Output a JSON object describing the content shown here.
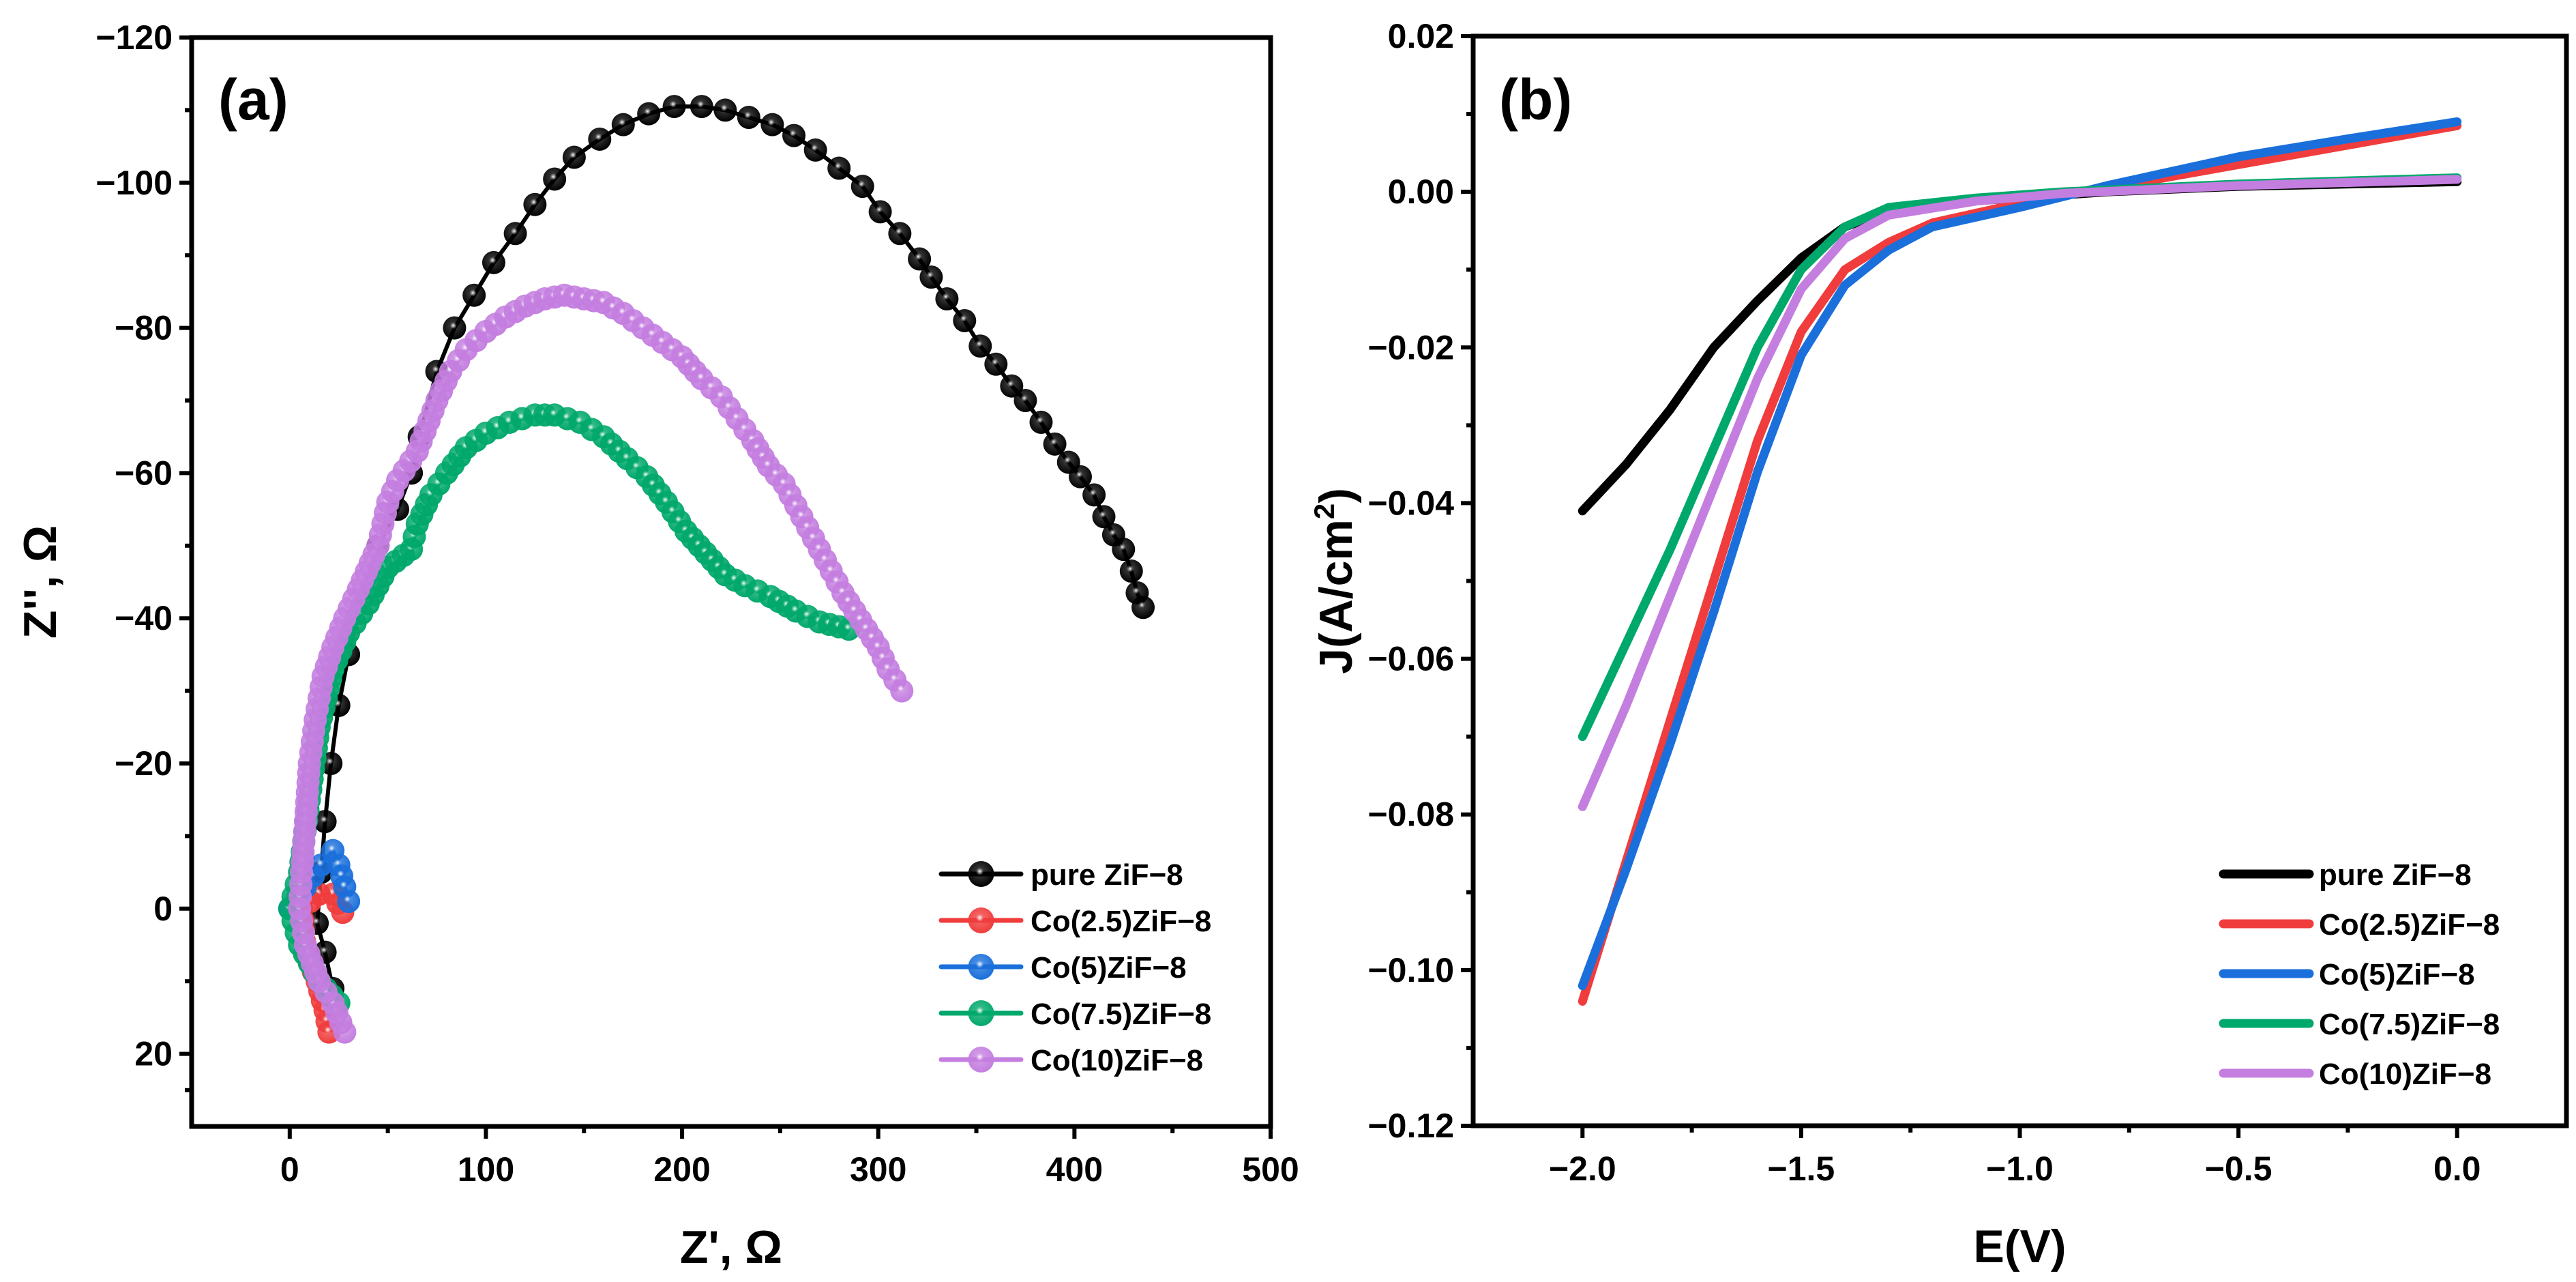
{
  "chart_data": [
    {
      "panel_label": "(a)",
      "type": "scatter",
      "xlabel": "Z', Ω",
      "ylabel": "Z'', Ω",
      "xlim": [
        -50,
        500
      ],
      "ylim": [
        30,
        -120
      ],
      "xticks": [
        0,
        100,
        200,
        300,
        400,
        500
      ],
      "xtick_labels": [
        "0",
        "100",
        "200",
        "300",
        "400",
        "500"
      ],
      "yticks": [
        -120,
        -100,
        -80,
        -60,
        -40,
        -20,
        0,
        20
      ],
      "ytick_labels": [
        "−120",
        "−100",
        "−80",
        "−60",
        "−40",
        "−20",
        "0",
        "20"
      ],
      "legend_position": "bottom-right",
      "series": [
        {
          "name": "pure ZiF−8",
          "color": "#000000",
          "points": [
            [
              22,
              11
            ],
            [
              18,
              6
            ],
            [
              14,
              2
            ],
            [
              16,
              -5
            ],
            [
              18,
              -12
            ],
            [
              21,
              -20
            ],
            [
              25,
              -28
            ],
            [
              30,
              -35
            ],
            [
              37,
              -43
            ],
            [
              45,
              -50
            ],
            [
              55,
              -55
            ],
            [
              62,
              -60
            ],
            [
              66,
              -65
            ],
            [
              75,
              -74
            ],
            [
              84,
              -80
            ],
            [
              94,
              -84.5
            ],
            [
              104,
              -89
            ],
            [
              115,
              -93
            ],
            [
              125,
              -97
            ],
            [
              135,
              -100.5
            ],
            [
              145,
              -103.5
            ],
            [
              158,
              -106
            ],
            [
              170,
              -108
            ],
            [
              183,
              -109.5
            ],
            [
              196,
              -110.5
            ],
            [
              210,
              -110.5
            ],
            [
              222,
              -110
            ],
            [
              234,
              -109
            ],
            [
              246,
              -108
            ],
            [
              257,
              -106.5
            ],
            [
              268,
              -104.5
            ],
            [
              280,
              -102
            ],
            [
              292,
              -99.5
            ],
            [
              301,
              -96
            ],
            [
              311,
              -93
            ],
            [
              321,
              -89.5
            ],
            [
              327,
              -87
            ],
            [
              335,
              -84
            ],
            [
              344,
              -81
            ],
            [
              352,
              -77.5
            ],
            [
              360,
              -75
            ],
            [
              368,
              -72
            ],
            [
              375,
              -70
            ],
            [
              383,
              -67
            ],
            [
              390,
              -64
            ],
            [
              397,
              -61.5
            ],
            [
              403,
              -59.5
            ],
            [
              410,
              -57
            ],
            [
              415,
              -54
            ],
            [
              420,
              -51.5
            ],
            [
              425,
              -49.5
            ],
            [
              429,
              -46.5
            ],
            [
              432,
              -43.5
            ],
            [
              435,
              -41.5
            ]
          ]
        },
        {
          "name": "Co(2.5)ZiF−8",
          "color": "#f03c3c",
          "points": [
            [
              27,
              0.5
            ],
            [
              22,
              -2
            ],
            [
              15,
              -2
            ],
            [
              6,
              0
            ],
            [
              8,
              6
            ],
            [
              14,
              10
            ],
            [
              18,
              14
            ],
            [
              20,
              17
            ]
          ]
        },
        {
          "name": "Co(5)ZiF−8",
          "color": "#1a6fdb",
          "points": [
            [
              0,
              0
            ],
            [
              8,
              -3
            ],
            [
              16,
              -6
            ],
            [
              22,
              -8
            ],
            [
              25,
              -6
            ],
            [
              28,
              -3
            ],
            [
              30,
              -1
            ]
          ]
        },
        {
          "name": "Co(7.5)ZiF−8",
          "color": "#00a86b",
          "points": [
            [
              25,
              13
            ],
            [
              15,
              10
            ],
            [
              5,
              5
            ],
            [
              0,
              0
            ],
            [
              5,
              -5
            ],
            [
              10,
              -15
            ],
            [
              15,
              -25
            ],
            [
              22,
              -33
            ],
            [
              30,
              -38
            ],
            [
              40,
              -42
            ],
            [
              50,
              -47
            ],
            [
              62,
              -49.5
            ],
            [
              65,
              -53
            ],
            [
              72,
              -57
            ],
            [
              80,
              -60
            ],
            [
              90,
              -63.5
            ],
            [
              100,
              -65.5
            ],
            [
              112,
              -67
            ],
            [
              125,
              -68
            ],
            [
              135,
              -68
            ],
            [
              148,
              -67
            ],
            [
              160,
              -65
            ],
            [
              172,
              -62
            ],
            [
              182,
              -59.5
            ],
            [
              192,
              -56
            ],
            [
              202,
              -52
            ],
            [
              212,
              -49
            ],
            [
              222,
              -46
            ],
            [
              232,
              -44.5
            ],
            [
              245,
              -43
            ],
            [
              258,
              -41
            ],
            [
              270,
              -39.5
            ],
            [
              285,
              -38.5
            ]
          ]
        },
        {
          "name": "Co(10)ZiF−8",
          "color": "#c47ee0",
          "points": [
            [
              28,
              17
            ],
            [
              22,
              13
            ],
            [
              15,
              10
            ],
            [
              8,
              5
            ],
            [
              5,
              0
            ],
            [
              6,
              -5
            ],
            [
              8,
              -12
            ],
            [
              10,
              -20
            ],
            [
              13,
              -26
            ],
            [
              17,
              -32
            ],
            [
              22,
              -36
            ],
            [
              28,
              -40
            ],
            [
              35,
              -44
            ],
            [
              45,
              -50
            ],
            [
              50,
              -56
            ],
            [
              55,
              -59
            ],
            [
              65,
              -63
            ],
            [
              75,
              -70
            ],
            [
              82,
              -74
            ],
            [
              90,
              -77
            ],
            [
              100,
              -79.5
            ],
            [
              110,
              -81.5
            ],
            [
              120,
              -83
            ],
            [
              130,
              -84
            ],
            [
              140,
              -84.5
            ],
            [
              150,
              -84
            ],
            [
              160,
              -83.5
            ],
            [
              170,
              -82
            ],
            [
              180,
              -80
            ],
            [
              190,
              -78
            ],
            [
              200,
              -76
            ],
            [
              210,
              -73
            ],
            [
              220,
              -70.5
            ],
            [
              228,
              -67.5
            ],
            [
              236,
              -64.5
            ],
            [
              244,
              -61
            ],
            [
              252,
              -58.5
            ],
            [
              258,
              -55.5
            ],
            [
              264,
              -52.5
            ],
            [
              270,
              -49.5
            ],
            [
              276,
              -46.5
            ],
            [
              282,
              -43.5
            ],
            [
              288,
              -41
            ],
            [
              294,
              -38.5
            ],
            [
              300,
              -36
            ],
            [
              305,
              -33
            ],
            [
              312,
              -30
            ]
          ]
        }
      ]
    },
    {
      "panel_label": "(b)",
      "type": "line",
      "xlabel": "E(V)",
      "ylabel": "J(A/cm",
      "ylabel_sup": "2",
      "ylabel_end": ")",
      "xlim": [
        -2.25,
        0.25
      ],
      "ylim": [
        -0.12,
        0.02
      ],
      "xticks": [
        -2.0,
        -1.5,
        -1.0,
        -0.5,
        0.0
      ],
      "xtick_labels": [
        "−2.0",
        "−1.5",
        "−1.0",
        "−0.5",
        "0.0"
      ],
      "yticks": [
        0.02,
        0.0,
        -0.02,
        -0.04,
        -0.06,
        -0.08,
        -0.1,
        -0.12
      ],
      "ytick_labels": [
        "0.02",
        "0.00",
        "−0.02",
        "−0.04",
        "−0.06",
        "−0.08",
        "−0.10",
        "−0.12"
      ],
      "legend_position": "bottom-right",
      "series": [
        {
          "name": "pure ZiF−8",
          "color": "#000000",
          "points": [
            [
              -2,
              -0.041
            ],
            [
              -1.9,
              -0.035
            ],
            [
              -1.8,
              -0.028
            ],
            [
              -1.7,
              -0.02
            ],
            [
              -1.6,
              -0.014
            ],
            [
              -1.5,
              -0.0085
            ],
            [
              -1.4,
              -0.0045
            ],
            [
              -1.3,
              -0.0025
            ],
            [
              -1.2,
              -0.0015
            ],
            [
              -1.0,
              -0.0008
            ],
            [
              -0.8,
              0.0
            ],
            [
              -0.5,
              0.0007
            ],
            [
              0,
              0.0013
            ]
          ]
        },
        {
          "name": "Co(2.5)ZiF−8",
          "color": "#f03c3c",
          "points": [
            [
              -2,
              -0.104
            ],
            [
              -1.9,
              -0.086
            ],
            [
              -1.8,
              -0.068
            ],
            [
              -1.7,
              -0.05
            ],
            [
              -1.6,
              -0.032
            ],
            [
              -1.5,
              -0.018
            ],
            [
              -1.4,
              -0.01
            ],
            [
              -1.3,
              -0.0065
            ],
            [
              -1.2,
              -0.004
            ],
            [
              -1.0,
              -0.0015
            ],
            [
              -0.8,
              0.0005
            ],
            [
              -0.5,
              0.0035
            ],
            [
              -0.25,
              0.006
            ],
            [
              0,
              0.0085
            ]
          ]
        },
        {
          "name": "Co(5)ZiF−8",
          "color": "#1a6fdb",
          "points": [
            [
              -2,
              -0.102
            ],
            [
              -1.9,
              -0.087
            ],
            [
              -1.8,
              -0.071
            ],
            [
              -1.7,
              -0.054
            ],
            [
              -1.6,
              -0.036
            ],
            [
              -1.5,
              -0.021
            ],
            [
              -1.4,
              -0.012
            ],
            [
              -1.3,
              -0.0075
            ],
            [
              -1.2,
              -0.0045
            ],
            [
              -1.0,
              -0.002
            ],
            [
              -0.8,
              0.0008
            ],
            [
              -0.5,
              0.0045
            ],
            [
              -0.25,
              0.0068
            ],
            [
              0,
              0.009
            ]
          ]
        },
        {
          "name": "Co(7.5)ZiF−8",
          "color": "#00a86b",
          "points": [
            [
              -2,
              -0.07
            ],
            [
              -1.9,
              -0.058
            ],
            [
              -1.8,
              -0.046
            ],
            [
              -1.7,
              -0.033
            ],
            [
              -1.6,
              -0.02
            ],
            [
              -1.5,
              -0.01
            ],
            [
              -1.4,
              -0.0045
            ],
            [
              -1.3,
              -0.002
            ],
            [
              -1.1,
              -0.0008
            ],
            [
              -0.9,
              0
            ],
            [
              -0.5,
              0.001
            ],
            [
              0,
              0.0018
            ]
          ]
        },
        {
          "name": "Co(10)ZiF−8",
          "color": "#c47ee0",
          "points": [
            [
              -2,
              -0.079
            ],
            [
              -1.9,
              -0.066
            ],
            [
              -1.8,
              -0.052
            ],
            [
              -1.7,
              -0.038
            ],
            [
              -1.6,
              -0.024
            ],
            [
              -1.5,
              -0.0125
            ],
            [
              -1.4,
              -0.006
            ],
            [
              -1.3,
              -0.003
            ],
            [
              -1.1,
              -0.0012
            ],
            [
              -0.9,
              -0.0002
            ],
            [
              -0.5,
              0.0008
            ],
            [
              0,
              0.0016
            ]
          ]
        }
      ]
    }
  ]
}
